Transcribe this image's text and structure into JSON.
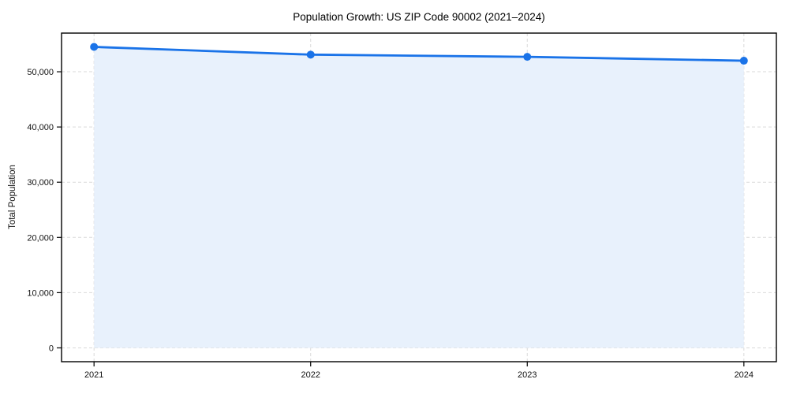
{
  "chart_data": {
    "type": "area",
    "title": "Population Growth: US ZIP Code 90002 (2021–2024)",
    "xlabel": "",
    "ylabel": "Total Population",
    "categories": [
      2021,
      2022,
      2023,
      2024
    ],
    "series": [
      {
        "name": "Total Population",
        "values": [
          54500,
          53100,
          52700,
          52000
        ]
      }
    ],
    "xticks": [
      "2021",
      "2022",
      "2023",
      "2024"
    ],
    "yticks": [
      0,
      10000,
      20000,
      30000,
      40000,
      50000
    ],
    "ytick_labels": [
      "0",
      "10,000",
      "20,000",
      "30,000",
      "40,000",
      "50,000"
    ],
    "xlim": [
      2020.85,
      2024.15
    ],
    "ylim": [
      -2500,
      57000
    ],
    "grid": true,
    "grid_style": "dashed",
    "legend": false,
    "fill_to_zero": true,
    "colors": {
      "line": "#1a73e8",
      "marker": "#1a73e8",
      "fill": "#e8f1fc",
      "grid": "#d9d9d9",
      "spine": "#000000",
      "tick": "#000000",
      "text": "#111111",
      "background": "#ffffff"
    }
  }
}
